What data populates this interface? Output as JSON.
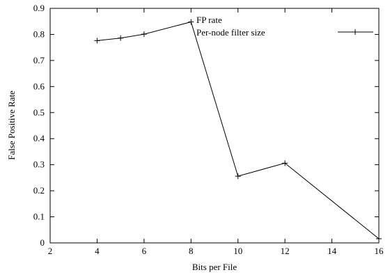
{
  "chart_data": {
    "type": "line",
    "title": "",
    "xlabel": "Bits per File",
    "ylabel": "False Positive Rate",
    "xlim": [
      2,
      16
    ],
    "ylim": [
      0,
      0.9
    ],
    "xticks": [
      2,
      4,
      6,
      8,
      10,
      12,
      14,
      16
    ],
    "yticks": [
      0,
      0.1,
      0.2,
      0.3,
      0.4,
      0.5,
      0.6,
      0.7,
      0.8,
      0.9
    ],
    "ytick_labels": [
      "0",
      "0.1",
      "0.2",
      "0.3",
      "0.4",
      "0.5",
      "0.6",
      "0.7",
      "0.8",
      "0.9"
    ],
    "grid": false,
    "legend_position": "top-right",
    "legend_title": "FP rate",
    "series": [
      {
        "name": "Per-node filter size",
        "color": "#000000",
        "marker": "plus",
        "x": [
          4,
          5,
          6,
          8,
          10,
          12,
          16
        ],
        "y": [
          0.776,
          0.786,
          0.801,
          0.848,
          0.256,
          0.306,
          0.016
        ]
      }
    ]
  }
}
